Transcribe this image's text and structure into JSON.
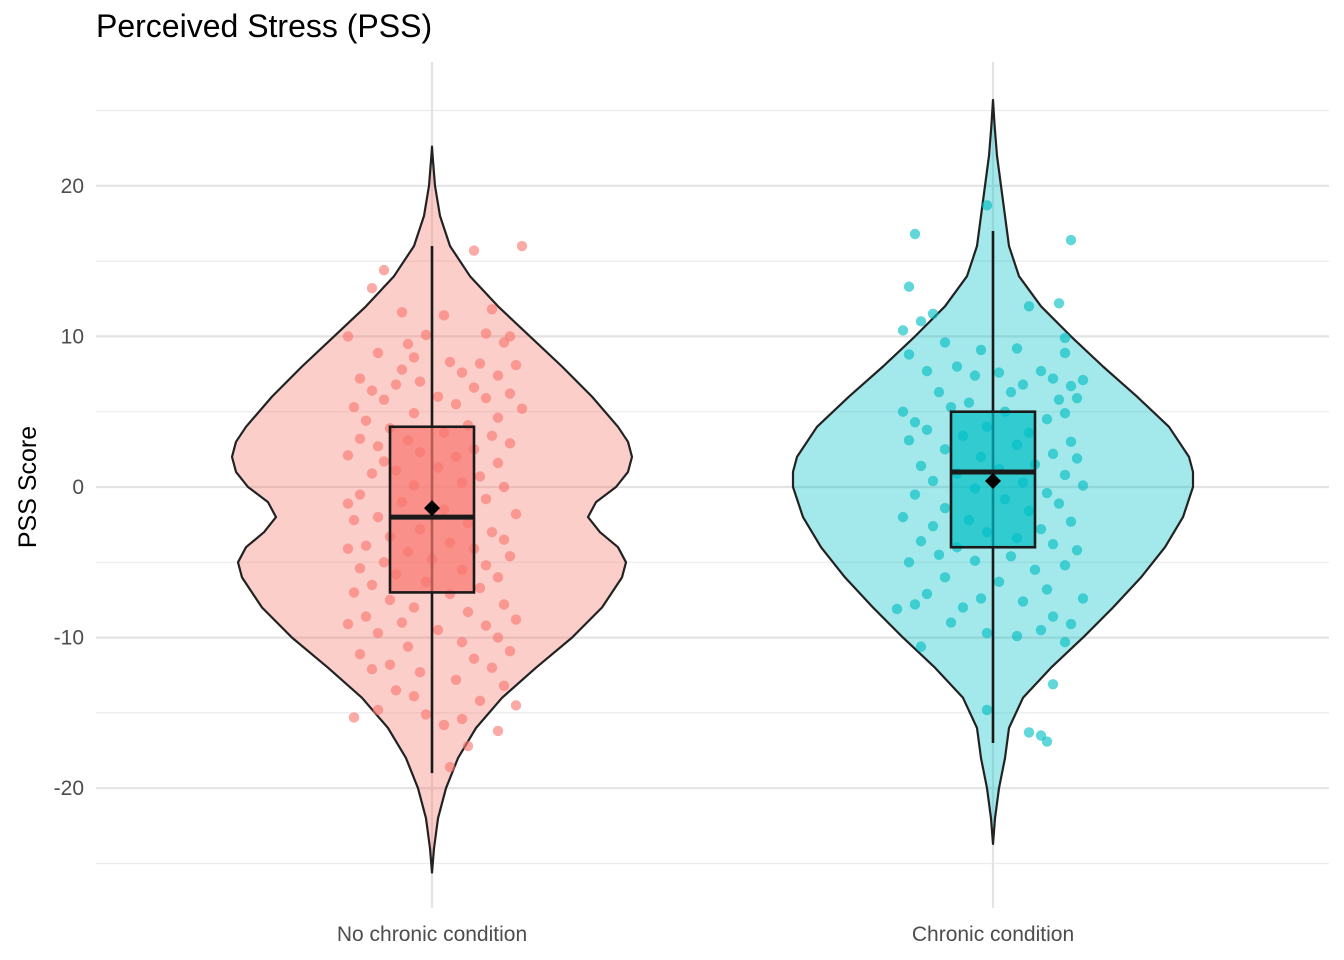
{
  "chart_data": {
    "type": "violin",
    "title": "Perceived Stress (PSS)",
    "xlabel": "",
    "ylabel": "PSS Score",
    "ylim": [
      -25,
      25
    ],
    "y_ticks": [
      -20,
      -10,
      0,
      10,
      20
    ],
    "y_tick_labels": [
      "-20",
      "-10",
      "0",
      "10",
      "20"
    ],
    "categories": [
      "No chronic condition",
      "Chronic condition"
    ],
    "grid": true,
    "legend": "none",
    "groups": [
      {
        "category": "No chronic condition",
        "color": "#F8766D",
        "box": {
          "whisker_low": -19,
          "q1": -7,
          "median": -2,
          "q3": 4,
          "whisker_high": 16
        },
        "mean": -1.4,
        "density_range": [
          -25.6,
          22.6
        ],
        "density_profile": [
          [
            -25.6,
            0.0
          ],
          [
            -24,
            0.01
          ],
          [
            -22,
            0.03
          ],
          [
            -20,
            0.07
          ],
          [
            -18,
            0.13
          ],
          [
            -16,
            0.22
          ],
          [
            -14,
            0.35
          ],
          [
            -12,
            0.52
          ],
          [
            -10,
            0.7
          ],
          [
            -8,
            0.85
          ],
          [
            -6,
            0.95
          ],
          [
            -5,
            0.97
          ],
          [
            -4,
            0.93
          ],
          [
            -3,
            0.84
          ],
          [
            -2,
            0.78
          ],
          [
            -1,
            0.82
          ],
          [
            0,
            0.92
          ],
          [
            1,
            0.98
          ],
          [
            2,
            1.0
          ],
          [
            3,
            0.98
          ],
          [
            4,
            0.93
          ],
          [
            6,
            0.8
          ],
          [
            8,
            0.65
          ],
          [
            10,
            0.49
          ],
          [
            12,
            0.33
          ],
          [
            14,
            0.19
          ],
          [
            16,
            0.09
          ],
          [
            18,
            0.04
          ],
          [
            20,
            0.015
          ],
          [
            22,
            0.003
          ],
          [
            22.6,
            0.0
          ]
        ],
        "points": [
          [
            -0.08,
            14.4
          ],
          [
            0.07,
            15.7
          ],
          [
            0.15,
            16.0
          ],
          [
            -0.1,
            13.2
          ],
          [
            0.1,
            11.8
          ],
          [
            -0.05,
            11.6
          ],
          [
            0.02,
            11.4
          ],
          [
            -0.14,
            10.0
          ],
          [
            0.09,
            10.2
          ],
          [
            0.13,
            10.0
          ],
          [
            -0.01,
            10.1
          ],
          [
            -0.04,
            9.5
          ],
          [
            0.12,
            9.6
          ],
          [
            -0.09,
            8.9
          ],
          [
            0.03,
            8.3
          ],
          [
            -0.03,
            8.6
          ],
          [
            0.08,
            8.2
          ],
          [
            0.14,
            8.1
          ],
          [
            -0.12,
            7.2
          ],
          [
            -0.05,
            7.8
          ],
          [
            0.05,
            7.6
          ],
          [
            0.11,
            7.4
          ],
          [
            -0.02,
            7.0
          ],
          [
            -0.1,
            6.4
          ],
          [
            0.07,
            6.6
          ],
          [
            -0.06,
            6.8
          ],
          [
            0.13,
            6.2
          ],
          [
            0.01,
            6.0
          ],
          [
            -0.13,
            5.3
          ],
          [
            -0.08,
            5.8
          ],
          [
            0.09,
            5.9
          ],
          [
            0.04,
            5.5
          ],
          [
            0.15,
            5.2
          ],
          [
            -0.03,
            4.9
          ],
          [
            0.11,
            4.6
          ],
          [
            -0.11,
            4.4
          ],
          [
            0.06,
            4.1
          ],
          [
            -0.07,
            3.9
          ],
          [
            0.02,
            3.6
          ],
          [
            -0.12,
            3.2
          ],
          [
            0.1,
            3.4
          ],
          [
            -0.04,
            3.1
          ],
          [
            0.13,
            2.9
          ],
          [
            -0.09,
            2.7
          ],
          [
            0.07,
            2.5
          ],
          [
            -0.14,
            2.1
          ],
          [
            -0.02,
            2.3
          ],
          [
            0.04,
            2.0
          ],
          [
            -0.08,
            1.7
          ],
          [
            0.11,
            1.6
          ],
          [
            0.01,
            1.3
          ],
          [
            -0.06,
            1.1
          ],
          [
            -0.1,
            0.9
          ],
          [
            0.08,
            0.7
          ],
          [
            0.05,
            0.3
          ],
          [
            -0.03,
            0.1
          ],
          [
            0.12,
            0.0
          ],
          [
            -0.12,
            -0.5
          ],
          [
            0.09,
            -0.8
          ],
          [
            -0.05,
            -1.0
          ],
          [
            -0.14,
            -1.1
          ],
          [
            0.02,
            -1.5
          ],
          [
            0.14,
            -1.8
          ],
          [
            -0.09,
            -2.0
          ],
          [
            -0.13,
            -2.2
          ],
          [
            0.06,
            -2.4
          ],
          [
            -0.02,
            -2.8
          ],
          [
            0.1,
            -3.0
          ],
          [
            -0.07,
            -3.3
          ],
          [
            0.12,
            -3.5
          ],
          [
            0.03,
            -3.7
          ],
          [
            -0.11,
            -3.9
          ],
          [
            0.07,
            -4.1
          ],
          [
            -0.04,
            -4.3
          ],
          [
            -0.14,
            -4.1
          ],
          [
            0.13,
            -4.6
          ],
          [
            0.0,
            -4.8
          ],
          [
            -0.08,
            -5.0
          ],
          [
            0.09,
            -5.2
          ],
          [
            -0.12,
            -5.4
          ],
          [
            0.05,
            -5.5
          ],
          [
            -0.06,
            -5.8
          ],
          [
            0.11,
            -6.0
          ],
          [
            -0.01,
            -6.3
          ],
          [
            -0.1,
            -6.5
          ],
          [
            0.08,
            -6.7
          ],
          [
            -0.13,
            -7.0
          ],
          [
            0.03,
            -7.1
          ],
          [
            -0.07,
            -7.5
          ],
          [
            0.12,
            -7.8
          ],
          [
            -0.03,
            -8.0
          ],
          [
            0.06,
            -8.3
          ],
          [
            -0.11,
            -8.6
          ],
          [
            0.14,
            -8.8
          ],
          [
            -0.05,
            -9.0
          ],
          [
            0.09,
            -9.2
          ],
          [
            -0.14,
            -9.1
          ],
          [
            0.01,
            -9.5
          ],
          [
            -0.09,
            -9.7
          ],
          [
            0.11,
            -10.0
          ],
          [
            0.05,
            -10.3
          ],
          [
            -0.04,
            -10.6
          ],
          [
            0.13,
            -10.9
          ],
          [
            -0.12,
            -11.1
          ],
          [
            0.07,
            -11.4
          ],
          [
            -0.07,
            -11.8
          ],
          [
            0.1,
            -12.0
          ],
          [
            -0.02,
            -12.3
          ],
          [
            -0.1,
            -12.1
          ],
          [
            0.04,
            -12.8
          ],
          [
            0.12,
            -13.2
          ],
          [
            -0.06,
            -13.5
          ],
          [
            -0.03,
            -13.9
          ],
          [
            0.08,
            -14.2
          ],
          [
            0.14,
            -14.5
          ],
          [
            -0.09,
            -14.8
          ],
          [
            -0.01,
            -15.1
          ],
          [
            0.05,
            -15.4
          ],
          [
            -0.13,
            -15.3
          ],
          [
            0.02,
            -15.8
          ],
          [
            0.11,
            -16.2
          ],
          [
            0.06,
            -17.2
          ],
          [
            0.03,
            -18.6
          ]
        ]
      },
      {
        "category": "Chronic condition",
        "color": "#00BFC4",
        "box": {
          "whisker_low": -17,
          "q1": -4,
          "median": 1,
          "q3": 5,
          "whisker_high": 17
        },
        "mean": 0.4,
        "density_range": [
          -23.7,
          25.7
        ],
        "density_profile": [
          [
            -23.7,
            0.0
          ],
          [
            -22,
            0.01
          ],
          [
            -20,
            0.03
          ],
          [
            -18,
            0.06
          ],
          [
            -16,
            0.08
          ],
          [
            -14,
            0.15
          ],
          [
            -12,
            0.29
          ],
          [
            -10,
            0.45
          ],
          [
            -8,
            0.6
          ],
          [
            -6,
            0.74
          ],
          [
            -4,
            0.86
          ],
          [
            -2,
            0.95
          ],
          [
            0,
            1.0
          ],
          [
            1,
            1.0
          ],
          [
            2,
            0.98
          ],
          [
            4,
            0.88
          ],
          [
            6,
            0.72
          ],
          [
            8,
            0.55
          ],
          [
            10,
            0.39
          ],
          [
            12,
            0.24
          ],
          [
            14,
            0.13
          ],
          [
            16,
            0.08
          ],
          [
            18,
            0.06
          ],
          [
            20,
            0.04
          ],
          [
            22,
            0.02
          ],
          [
            24,
            0.008
          ],
          [
            25.7,
            0.0
          ]
        ],
        "points": [
          [
            -0.01,
            18.7
          ],
          [
            -0.13,
            16.8
          ],
          [
            0.13,
            16.4
          ],
          [
            -0.14,
            13.3
          ],
          [
            0.11,
            12.2
          ],
          [
            0.06,
            12.0
          ],
          [
            -0.1,
            11.5
          ],
          [
            -0.12,
            11.0
          ],
          [
            -0.15,
            10.4
          ],
          [
            0.12,
            9.9
          ],
          [
            -0.08,
            9.6
          ],
          [
            0.04,
            9.2
          ],
          [
            -0.02,
            9.1
          ],
          [
            -0.14,
            8.8
          ],
          [
            0.12,
            8.9
          ],
          [
            -0.06,
            8.0
          ],
          [
            0.08,
            7.7
          ],
          [
            -0.11,
            7.7
          ],
          [
            0.1,
            7.2
          ],
          [
            -0.03,
            7.4
          ],
          [
            0.15,
            7.1
          ],
          [
            0.01,
            7.6
          ],
          [
            0.13,
            6.7
          ],
          [
            0.05,
            6.8
          ],
          [
            -0.09,
            6.3
          ],
          [
            0.03,
            6.3
          ],
          [
            0.11,
            5.8
          ],
          [
            -0.04,
            5.6
          ],
          [
            0.14,
            5.9
          ],
          [
            -0.15,
            5.0
          ],
          [
            -0.07,
            5.3
          ],
          [
            0.02,
            5.0
          ],
          [
            0.12,
            4.9
          ],
          [
            -0.13,
            4.3
          ],
          [
            0.09,
            4.5
          ],
          [
            -0.01,
            4.0
          ],
          [
            -0.11,
            3.8
          ],
          [
            0.06,
            3.6
          ],
          [
            -0.05,
            3.4
          ],
          [
            0.13,
            3.0
          ],
          [
            -0.14,
            3.1
          ],
          [
            0.04,
            2.8
          ],
          [
            -0.08,
            2.5
          ],
          [
            0.1,
            2.2
          ],
          [
            -0.02,
            2.0
          ],
          [
            0.14,
            1.9
          ],
          [
            -0.12,
            1.4
          ],
          [
            0.07,
            1.5
          ],
          [
            0.01,
            1.2
          ],
          [
            -0.06,
            0.9
          ],
          [
            0.12,
            0.8
          ],
          [
            -0.1,
            0.4
          ],
          [
            0.05,
            0.3
          ],
          [
            0.15,
            0.1
          ],
          [
            -0.03,
            -0.1
          ],
          [
            0.09,
            -0.4
          ],
          [
            -0.13,
            -0.5
          ],
          [
            0.02,
            -0.8
          ],
          [
            0.11,
            -1.1
          ],
          [
            -0.08,
            -1.4
          ],
          [
            0.06,
            -1.6
          ],
          [
            -0.15,
            -2.0
          ],
          [
            -0.04,
            -2.2
          ],
          [
            0.13,
            -2.3
          ],
          [
            -0.1,
            -2.6
          ],
          [
            0.08,
            -2.8
          ],
          [
            -0.01,
            -3.0
          ],
          [
            0.04,
            -3.4
          ],
          [
            -0.12,
            -3.6
          ],
          [
            0.1,
            -3.8
          ],
          [
            -0.06,
            -4.0
          ],
          [
            0.14,
            -4.2
          ],
          [
            -0.09,
            -4.5
          ],
          [
            0.03,
            -4.6
          ],
          [
            -0.03,
            -4.9
          ],
          [
            -0.14,
            -5.0
          ],
          [
            0.12,
            -5.2
          ],
          [
            0.07,
            -5.5
          ],
          [
            -0.08,
            -6.0
          ],
          [
            0.01,
            -6.3
          ],
          [
            0.09,
            -6.8
          ],
          [
            -0.11,
            -7.1
          ],
          [
            -0.02,
            -7.4
          ],
          [
            0.05,
            -7.6
          ],
          [
            -0.13,
            -7.8
          ],
          [
            0.15,
            -7.4
          ],
          [
            -0.05,
            -8.0
          ],
          [
            -0.16,
            -8.1
          ],
          [
            0.1,
            -8.6
          ],
          [
            -0.07,
            -9.0
          ],
          [
            0.13,
            -9.1
          ],
          [
            0.08,
            -9.5
          ],
          [
            -0.01,
            -9.7
          ],
          [
            0.04,
            -9.9
          ],
          [
            0.12,
            -10.3
          ],
          [
            -0.12,
            -10.6
          ],
          [
            0.1,
            -13.1
          ],
          [
            -0.01,
            -14.8
          ],
          [
            0.06,
            -16.3
          ],
          [
            0.08,
            -16.5
          ],
          [
            0.09,
            -16.9
          ]
        ]
      }
    ]
  }
}
